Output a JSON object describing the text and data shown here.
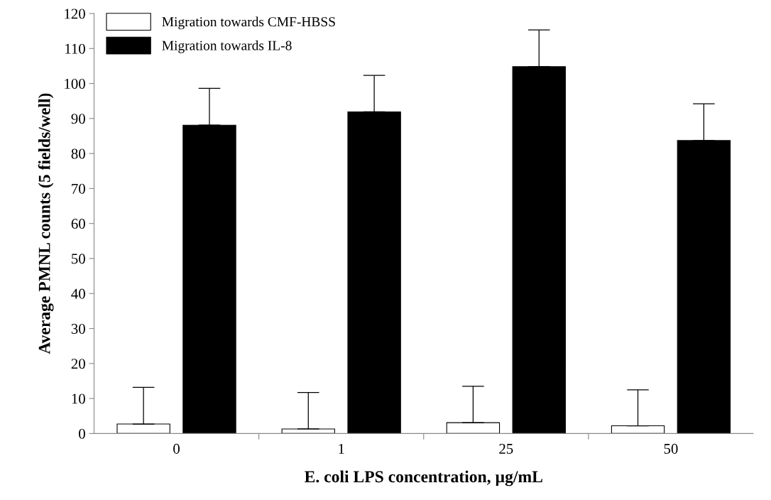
{
  "chart_data": {
    "type": "bar",
    "xlabel": "E. coli LPS concentration, µg/mL",
    "ylabel": "Average PMNL counts (5 fields/well)",
    "categories": [
      "0",
      "1",
      "25",
      "50"
    ],
    "series": [
      {
        "name": "Migration towards CMF-HBSS",
        "color": "#ffffff",
        "values": [
          2.7,
          1.3,
          3.1,
          2.2
        ],
        "errors": [
          [
            2.7,
            13.2
          ],
          [
            1.3,
            11.7
          ],
          [
            3.1,
            13.5
          ],
          [
            2.2,
            12.5
          ]
        ]
      },
      {
        "name": "Migration towards IL-8",
        "color": "#000000",
        "values": [
          88.1,
          91.9,
          104.8,
          83.7
        ],
        "errors": [
          [
            88.1,
            98.6
          ],
          [
            91.9,
            102.3
          ],
          [
            104.8,
            115.3
          ],
          [
            83.7,
            94.2
          ]
        ]
      }
    ],
    "ylim": [
      0,
      120
    ],
    "yticks": [
      0,
      10,
      20,
      30,
      40,
      50,
      60,
      70,
      80,
      90,
      100,
      110,
      120
    ],
    "grid": false,
    "legend": "top left"
  }
}
